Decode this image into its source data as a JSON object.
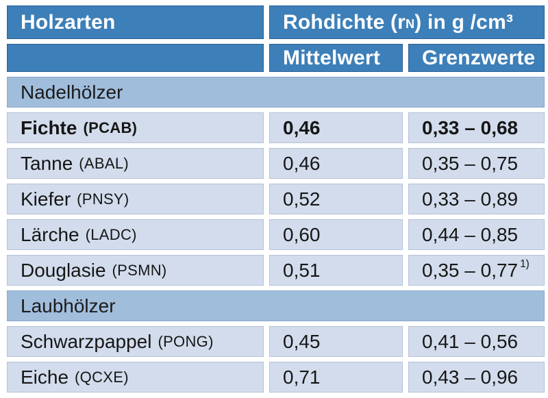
{
  "colors": {
    "header_blue": "#3d7fb8",
    "section_blue": "#a1bddc",
    "row_blue": "#d2dcec",
    "background": "#ffffff",
    "text": "#161616",
    "header_text": "#ffffff"
  },
  "table": {
    "header": {
      "col1": "Holzarten",
      "density_prefix": "Rohdichte (r",
      "density_sub": "N",
      "density_suffix": ") in g /cm³",
      "mean": "Mittelwert",
      "limits": "Grenzwerte"
    },
    "rows": [
      {
        "type": "section",
        "label": "Nadelhölzer"
      },
      {
        "type": "data",
        "bold": true,
        "name": "Fichte",
        "code": "(PCAB)",
        "mean": "0,46",
        "range": "0,33 – 0,68",
        "note": ""
      },
      {
        "type": "data",
        "bold": false,
        "name": "Tanne",
        "code": "(ABAL)",
        "mean": "0,46",
        "range": "0,35 – 0,75",
        "note": ""
      },
      {
        "type": "data",
        "bold": false,
        "name": "Kiefer",
        "code": "(PNSY)",
        "mean": "0,52",
        "range": "0,33 – 0,89",
        "note": ""
      },
      {
        "type": "data",
        "bold": false,
        "name": "Lärche",
        "code": "(LADC)",
        "mean": "0,60",
        "range": "0,44 – 0,85",
        "note": ""
      },
      {
        "type": "data",
        "bold": false,
        "name": "Douglasie",
        "code": "(PSMN)",
        "mean": "0,51",
        "range": "0,35 – 0,77",
        "note": "1)"
      },
      {
        "type": "section",
        "label": "Laubhölzer"
      },
      {
        "type": "data",
        "bold": false,
        "name": "Schwarzpappel",
        "code": "(PONG)",
        "mean": "0,45",
        "range": "0,41 – 0,56",
        "note": ""
      },
      {
        "type": "data",
        "bold": false,
        "name": "Eiche",
        "code": "(QCXE)",
        "mean": "0,71",
        "range": "0,43 – 0,96",
        "note": ""
      }
    ]
  }
}
